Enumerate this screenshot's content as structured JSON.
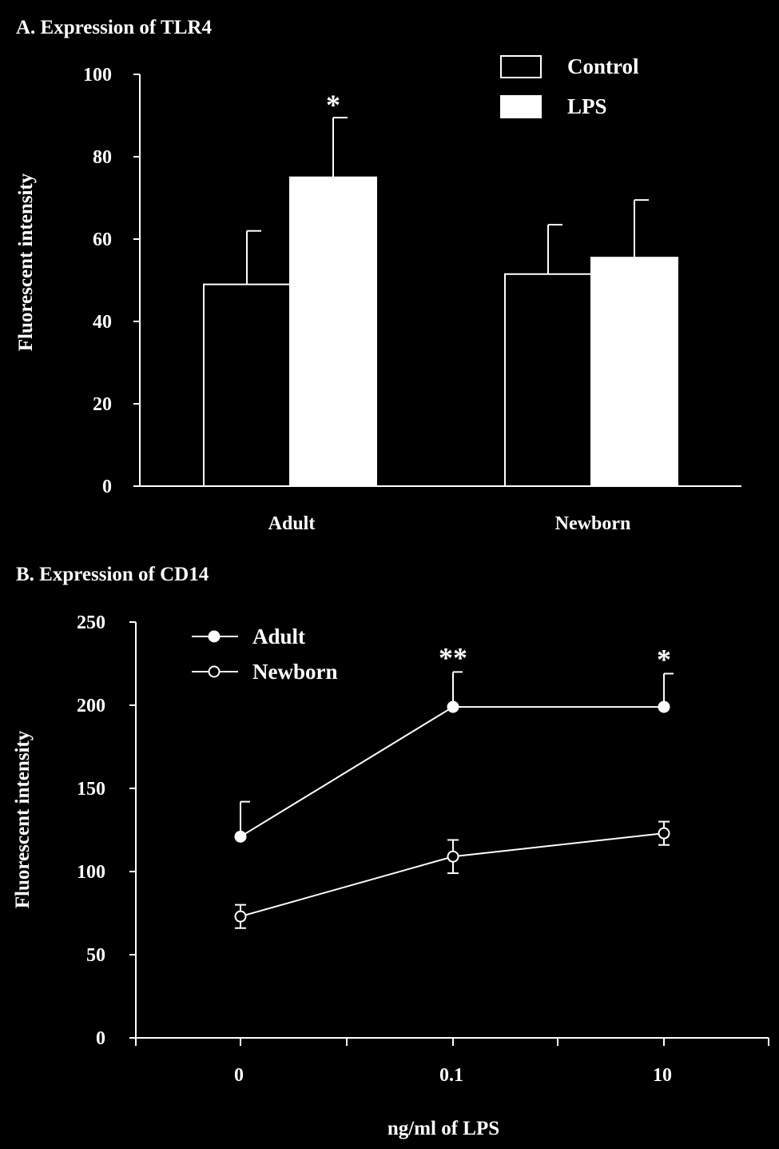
{
  "chart_data": [
    {
      "type": "bar",
      "title": "A. Expression of TLR4",
      "ylabel": "Fluorescent intensity",
      "xlabel": "",
      "ylim": [
        0,
        100
      ],
      "yticks": [
        "0",
        "20",
        "40",
        "60",
        "80",
        "100"
      ],
      "categories": [
        "Adult",
        "Newborn"
      ],
      "series": [
        {
          "name": "Control",
          "values": [
            49,
            51.5
          ],
          "errors": [
            13,
            12
          ],
          "fill": "#000000"
        },
        {
          "name": "LPS",
          "values": [
            75,
            55.5
          ],
          "errors": [
            14.5,
            14
          ],
          "fill": "#ffffff"
        }
      ],
      "annotations": [
        {
          "category": "Adult",
          "series": "LPS",
          "text": "*"
        }
      ],
      "legend": "top-right"
    },
    {
      "type": "line",
      "title": "B. Expression of CD14",
      "ylabel": "Fluorescent intensity",
      "xlabel": "ng/ml of LPS",
      "ylim": [
        0,
        250
      ],
      "yticks": [
        "0",
        "50",
        "100",
        "150",
        "200",
        "250"
      ],
      "x": [
        "0",
        "0.1",
        "10"
      ],
      "series": [
        {
          "name": "Adult",
          "marker": "filled-circle",
          "values": [
            121,
            199,
            199
          ],
          "errors": [
            21,
            21,
            20
          ],
          "error_dir": "up"
        },
        {
          "name": "Newborn",
          "marker": "open-circle",
          "values": [
            73,
            109,
            123
          ],
          "errors": [
            7,
            10,
            7
          ],
          "error_dir": "both"
        }
      ],
      "annotations": [
        {
          "x": "0.1",
          "text": "**"
        },
        {
          "x": "10",
          "text": "*"
        }
      ],
      "legend": "top-left"
    }
  ]
}
